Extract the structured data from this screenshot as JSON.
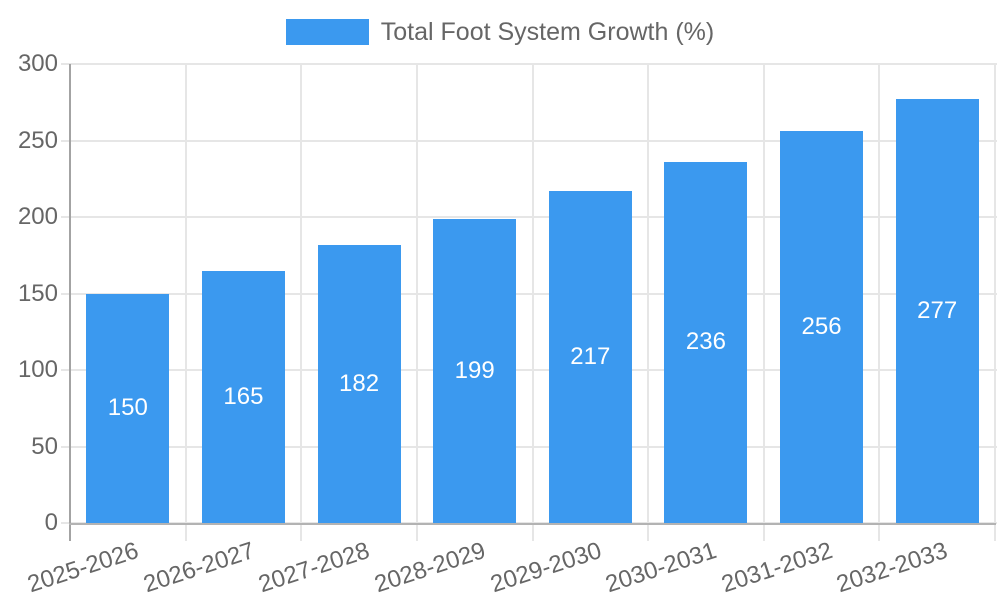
{
  "legend": {
    "label": "Total Foot System Growth (%)"
  },
  "colors": {
    "bar": "#3B99EF",
    "grid": "#E6E6E6",
    "axis_line_left": "#A3A3A3",
    "axis_line_bottom": "#B3B3B3",
    "tick_text": "#666666",
    "value_text": "#FFFFFF"
  },
  "chart_data": {
    "type": "bar",
    "title": "",
    "xlabel": "",
    "ylabel": "",
    "categories": [
      "2025-2026",
      "2026-2027",
      "2027-2028",
      "2028-2029",
      "2029-2030",
      "2030-2031",
      "2031-2032",
      "2032-2033"
    ],
    "series": [
      {
        "name": "Total Foot System Growth (%)",
        "color": "#3B99EF",
        "values": [
          150,
          165,
          182,
          199,
          217,
          236,
          256,
          277
        ]
      }
    ],
    "value_labels": [
      150,
      165,
      182,
      199,
      217,
      236,
      256,
      277
    ],
    "value_label_position": "inside-center",
    "ylim": [
      0,
      300
    ],
    "yticks": [
      0,
      50,
      100,
      150,
      200,
      250,
      300
    ],
    "grid": "on",
    "legend_position": "top-center",
    "x_tick_rotation_deg": -18
  }
}
